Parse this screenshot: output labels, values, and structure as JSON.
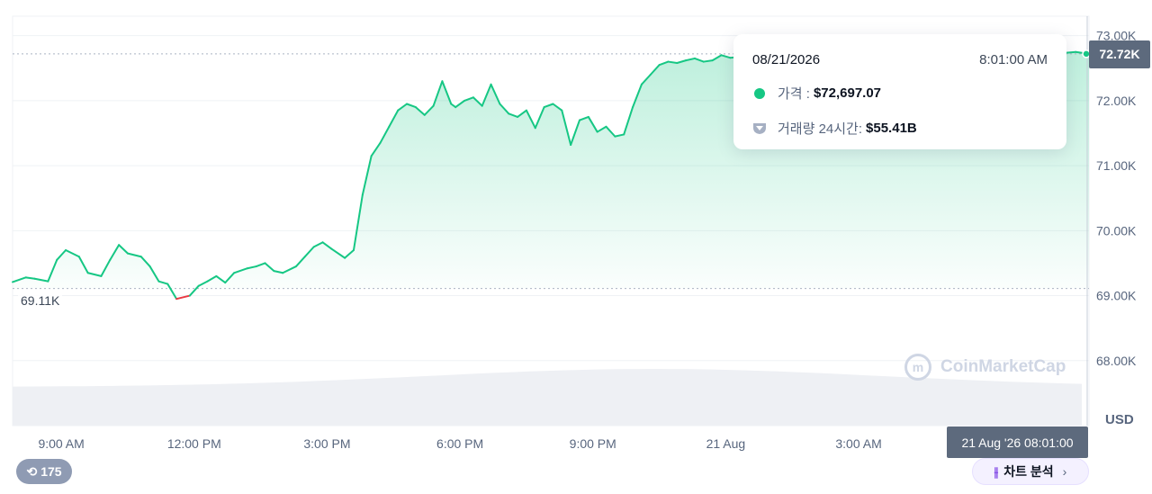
{
  "chart_data": {
    "type": "line",
    "currency": "USD",
    "start_value_label": "69.11K",
    "current_price_label": "72.72K",
    "y_ticks": [
      "68.00K",
      "69.00K",
      "70.00K",
      "71.00K",
      "72.00K",
      "73.00K"
    ],
    "y_tick_values": [
      68000,
      69000,
      70000,
      71000,
      72000,
      73000
    ],
    "ylim": [
      67000,
      73300
    ],
    "x_ticks": [
      "9:00 AM",
      "12:00 PM",
      "3:00 PM",
      "6:00 PM",
      "9:00 PM",
      "21 Aug",
      "3:00 AM"
    ],
    "x_tick_hours": [
      1.1,
      4.1,
      7.1,
      10.1,
      13.1,
      16.1,
      19.1
    ],
    "xlim_hours": [
      0,
      24.3
    ],
    "series": [
      {
        "x_hours": [
          0,
          0.3,
          0.5,
          0.8,
          1.0,
          1.2,
          1.5,
          1.7,
          2.0,
          2.2,
          2.4,
          2.6,
          2.9,
          3.1,
          3.3,
          3.5,
          3.7,
          4.0,
          4.2,
          4.4,
          4.6,
          4.8,
          5.0,
          5.3,
          5.5,
          5.7,
          5.9,
          6.1,
          6.4,
          6.6,
          6.8,
          7.0,
          7.2,
          7.5,
          7.7,
          7.9,
          8.1,
          8.3,
          8.5,
          8.7,
          8.9,
          9.1,
          9.3,
          9.5,
          9.7,
          9.9,
          10.0,
          10.2,
          10.4,
          10.6,
          10.8,
          11.0,
          11.2,
          11.4,
          11.6,
          11.8,
          12.0,
          12.2,
          12.4,
          12.6,
          12.8,
          13.0,
          13.2,
          13.4,
          13.6,
          13.8,
          14.0,
          14.2,
          14.4,
          14.6,
          14.8,
          15.0,
          15.2,
          15.4,
          15.6,
          15.8,
          16.0,
          16.2,
          16.5,
          17.0,
          17.5,
          18.0,
          18.5,
          19.0,
          19.5,
          20.0,
          20.5,
          21.0,
          21.5,
          22.0,
          22.5,
          23.0,
          23.5,
          24.0,
          24.3
        ],
        "y": [
          69.21,
          69.28,
          69.26,
          69.22,
          69.55,
          69.7,
          69.6,
          69.35,
          69.3,
          69.55,
          69.78,
          69.65,
          69.6,
          69.45,
          69.22,
          69.18,
          68.95,
          69.0,
          69.15,
          69.22,
          69.3,
          69.2,
          69.35,
          69.42,
          69.45,
          69.5,
          69.38,
          69.35,
          69.45,
          69.6,
          69.75,
          69.82,
          69.72,
          69.58,
          69.7,
          70.55,
          71.15,
          71.35,
          71.6,
          71.85,
          71.95,
          71.9,
          71.78,
          71.92,
          72.3,
          71.95,
          71.9,
          72.0,
          72.05,
          71.92,
          72.25,
          71.95,
          71.8,
          71.75,
          71.85,
          71.58,
          71.9,
          71.95,
          71.85,
          71.32,
          71.7,
          71.75,
          71.52,
          71.6,
          71.45,
          71.48,
          71.9,
          72.25,
          72.4,
          72.55,
          72.6,
          72.58,
          72.62,
          72.65,
          72.6,
          72.62,
          72.7,
          72.66,
          72.68,
          72.7,
          72.65,
          72.72,
          72.68,
          72.7,
          72.73,
          72.68,
          72.7,
          72.72,
          72.66,
          72.7,
          72.74,
          72.7,
          72.72,
          72.75,
          72.72
        ]
      }
    ],
    "volume_note": "24h volume area shown as light gray band",
    "tooltip": {
      "date": "08/21/2026",
      "time": "8:01:00 AM",
      "price_label": "가격 :",
      "price_value": "$72,697.07",
      "volume_label": "거래량 24시간:",
      "volume_value": "$55.41B"
    },
    "crosshair_time": "21 Aug '26 08:01:00",
    "colors": {
      "up": "#16c784",
      "down": "#ea3943",
      "fill": "#16c784",
      "volume": "#eef0f4",
      "grid": "#eff2f5"
    }
  },
  "watermark": "CoinMarketCap",
  "history_count": "175",
  "analysis_button": "차트 분석"
}
